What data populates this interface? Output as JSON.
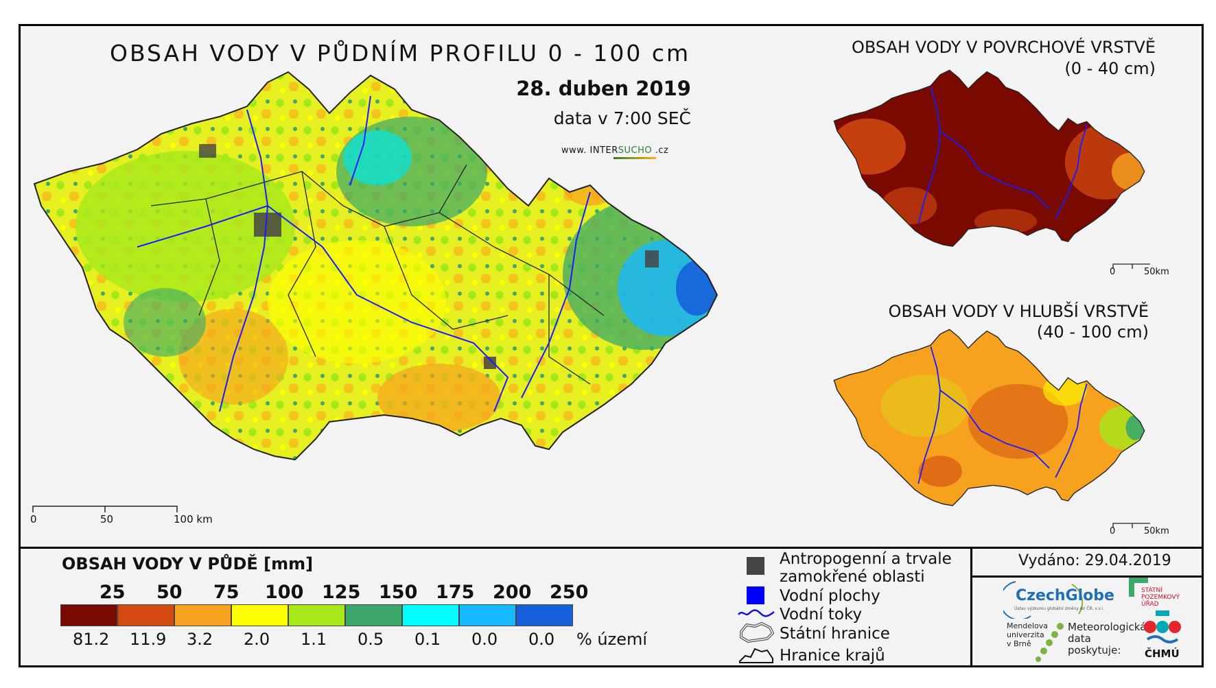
{
  "main": {
    "title": "OBSAH VODY V PŮDNÍM PROFILU 0 - 100 cm",
    "date": "28. duben 2019",
    "data_time": "data v 7:00 SEČ",
    "site_prefix": "www.",
    "site_a": "INTER",
    "site_b": "SUCHO",
    "site_suffix": ".cz",
    "scale": [
      "0",
      "50",
      "100 km"
    ]
  },
  "inset_top": {
    "title": "OBSAH VODY V POVRCHOVÉ VRSTVĚ",
    "subtitle": "(0 - 40 cm)",
    "scale": [
      "0",
      "50km"
    ]
  },
  "inset_bottom": {
    "title": "OBSAH VODY V HLUBŠÍ VRSTVĚ",
    "subtitle": "(40 - 100 cm)",
    "scale": [
      "0",
      "50km"
    ]
  },
  "legend": {
    "title": "OBSAH VODY V PŮDĚ [mm]",
    "class_limits": [
      "25",
      "50",
      "75",
      "100",
      "125",
      "150",
      "175",
      "200",
      "250"
    ],
    "colors": [
      "#7a0a00",
      "#d24a10",
      "#f6a21e",
      "#ffff00",
      "#a6e81a",
      "#3ba96a",
      "#00ffff",
      "#16b8ff",
      "#1760dc"
    ],
    "percent": [
      "81.2",
      "11.9",
      "3.2",
      "2.0",
      "1.1",
      "0.5",
      "0.1",
      "0.0",
      "0.0"
    ],
    "percent_label": "% území"
  },
  "symbols": {
    "anthropogenic_1": "Antropogenní a trvale",
    "anthropogenic_2": "zamokřené oblasti",
    "water_bodies": "Vodní plochy",
    "rivers": "Vodní toky",
    "state_border": "Státní hranice",
    "regions": "Hranice krajů",
    "colors": {
      "anthropogenic": "#444444",
      "water": "#0000ff",
      "river": "#1010e0"
    }
  },
  "issued": "Vydáno: 29.04.2019",
  "logos": {
    "czechglobe": "CzechGlobe",
    "czechglobe_sub": "Ústav výzkumu globální změny AV ČR, v.v.i.",
    "spu_1": "STÁTNÍ",
    "spu_2": "POZEMKOVÝ",
    "spu_3": "ÚŘAD",
    "mendel_1": "Mendelova",
    "mendel_2": "univerzita",
    "mendel_3": "v Brně",
    "meteo_1": "Meteorologická",
    "meteo_2": "data",
    "meteo_3": "poskytuje:",
    "chmu": "ČHMÚ"
  }
}
